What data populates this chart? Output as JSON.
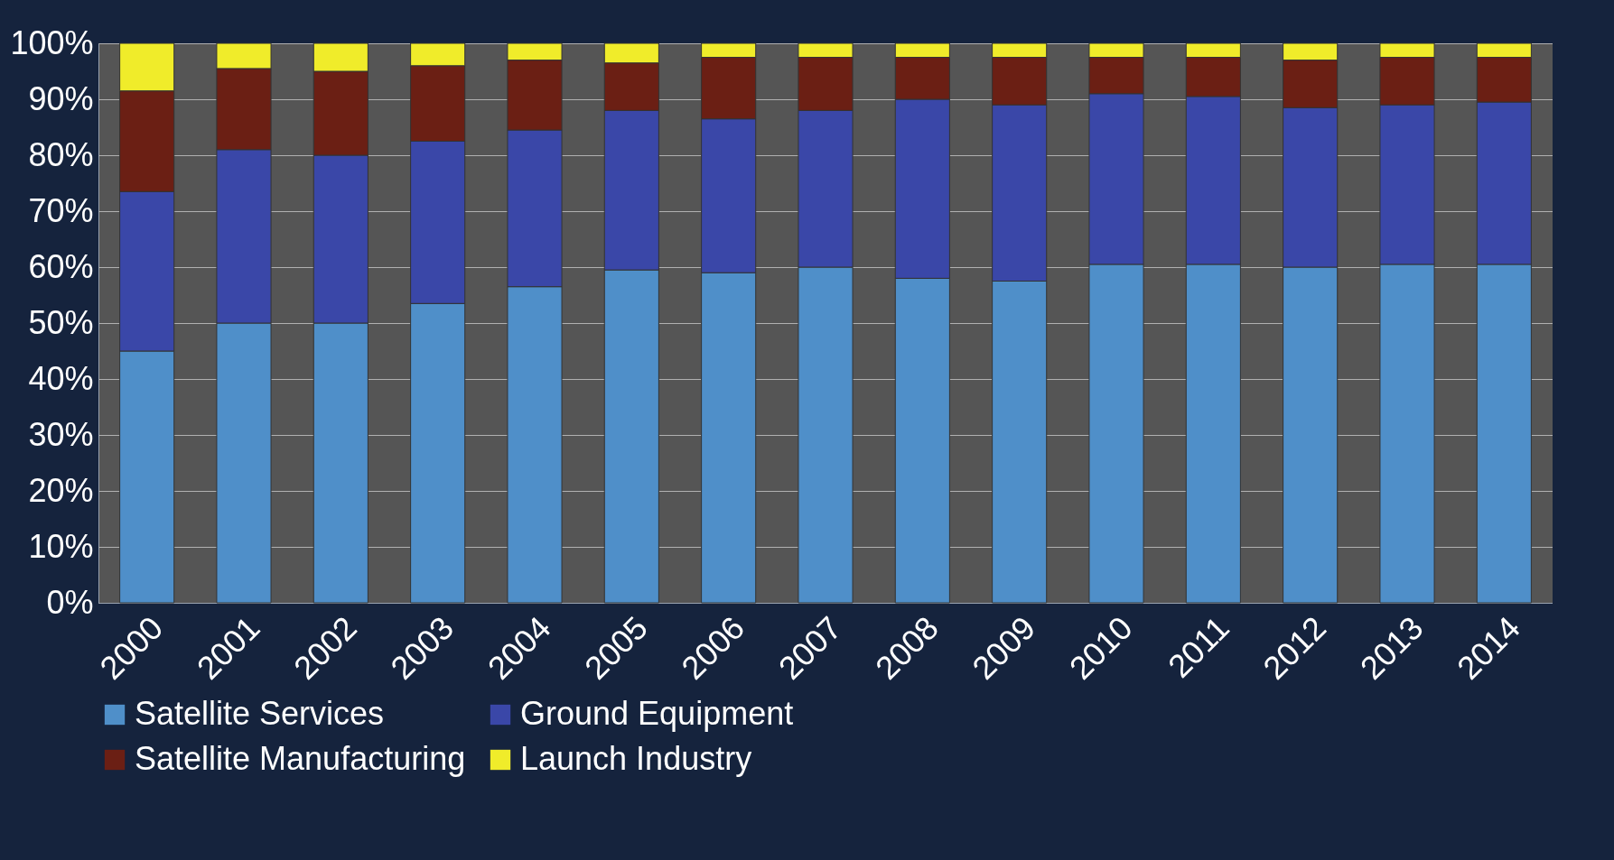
{
  "chart_data": {
    "type": "bar",
    "stacked": true,
    "categories": [
      "2000",
      "2001",
      "2002",
      "2003",
      "2004",
      "2005",
      "2006",
      "2007",
      "2008",
      "2009",
      "2010",
      "2011",
      "2012",
      "2013",
      "2014"
    ],
    "series": [
      {
        "name": "Satellite Services",
        "color": "#4f8fc9",
        "values": [
          45,
          50,
          50,
          53.5,
          56.5,
          59.5,
          59,
          60,
          58,
          57.5,
          60.5,
          60.5,
          60,
          60.5,
          60.5
        ]
      },
      {
        "name": "Ground Equipment",
        "color": "#3a47a8",
        "values": [
          28.5,
          31,
          30,
          29,
          28,
          28.5,
          27.5,
          28,
          32,
          31.5,
          30.5,
          30,
          28.5,
          28.5,
          29
        ]
      },
      {
        "name": "Satellite Manufacturing",
        "color": "#6b1f14",
        "values": [
          18,
          14.5,
          15,
          13.5,
          12.5,
          8.5,
          11,
          9.5,
          7.5,
          8.5,
          6.5,
          7,
          8.5,
          8.5,
          8
        ]
      },
      {
        "name": "Launch Industry",
        "color": "#f0ec2a",
        "values": [
          8.5,
          4.5,
          5,
          4,
          3,
          3.5,
          2.5,
          2.5,
          2.5,
          2.5,
          2.5,
          2.5,
          3,
          2.5,
          2.5
        ]
      }
    ],
    "ylim": [
      0,
      100
    ],
    "yticks": [
      {
        "value": 0,
        "label": "0%"
      },
      {
        "value": 10,
        "label": "10%"
      },
      {
        "value": 20,
        "label": "20%"
      },
      {
        "value": 30,
        "label": "30%"
      },
      {
        "value": 40,
        "label": "40%"
      },
      {
        "value": 50,
        "label": "50%"
      },
      {
        "value": 60,
        "label": "60%"
      },
      {
        "value": 70,
        "label": "70%"
      },
      {
        "value": 80,
        "label": "80%"
      },
      {
        "value": 90,
        "label": "90%"
      },
      {
        "value": 100,
        "label": "100%"
      }
    ],
    "grid": "y",
    "legend": "bottom"
  }
}
